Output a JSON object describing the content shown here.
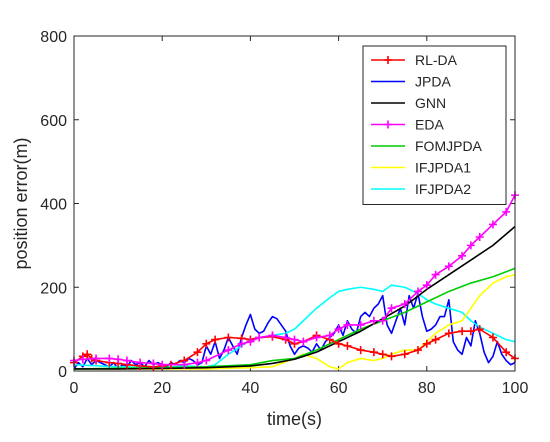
{
  "chart_data": {
    "type": "line",
    "title": "",
    "xlabel": "time(s)",
    "ylabel": "position error(m)",
    "xlim": [
      0,
      100
    ],
    "ylim": [
      0,
      800
    ],
    "xticks": [
      0,
      20,
      40,
      60,
      80,
      100
    ],
    "yticks": [
      0,
      200,
      400,
      600,
      800
    ],
    "grid": false,
    "legend_position": "top-right",
    "series": [
      {
        "name": "RL-DA",
        "color": "#ff0000",
        "marker": "plus",
        "x": [
          0,
          2,
          3,
          4,
          5,
          8,
          10,
          12,
          15,
          18,
          20,
          22,
          25,
          28,
          30,
          32,
          35,
          38,
          40,
          42,
          45,
          48,
          50,
          52,
          55,
          58,
          60,
          62,
          65,
          68,
          70,
          72,
          75,
          78,
          80,
          82,
          85,
          88,
          90,
          92,
          95,
          98,
          100
        ],
        "y": [
          20,
          35,
          40,
          30,
          25,
          20,
          18,
          15,
          12,
          10,
          12,
          15,
          25,
          45,
          65,
          75,
          80,
          78,
          75,
          80,
          82,
          75,
          65,
          70,
          85,
          75,
          65,
          60,
          50,
          45,
          40,
          35,
          40,
          50,
          65,
          75,
          90,
          95,
          95,
          100,
          80,
          45,
          30
        ]
      },
      {
        "name": "JPDA",
        "color": "#0000ff",
        "x": [
          0,
          1,
          2,
          3,
          4,
          5,
          6,
          7,
          8,
          9,
          10,
          11,
          12,
          13,
          14,
          15,
          16,
          17,
          18,
          19,
          20,
          21,
          22,
          23,
          24,
          25,
          26,
          27,
          28,
          29,
          30,
          31,
          32,
          33,
          34,
          35,
          36,
          37,
          38,
          39,
          40,
          41,
          42,
          43,
          44,
          45,
          46,
          47,
          48,
          49,
          50,
          51,
          52,
          53,
          54,
          55,
          56,
          57,
          58,
          59,
          60,
          61,
          62,
          63,
          64,
          65,
          66,
          67,
          68,
          69,
          70,
          71,
          72,
          73,
          74,
          75,
          76,
          77,
          78,
          79,
          80,
          81,
          82,
          83,
          84,
          85,
          86,
          87,
          88,
          89,
          90,
          91,
          92,
          93,
          94,
          95,
          96,
          97,
          98,
          99,
          100
        ],
        "y": [
          5,
          20,
          10,
          30,
          15,
          25,
          20,
          15,
          10,
          20,
          5,
          15,
          10,
          25,
          15,
          20,
          10,
          25,
          15,
          20,
          15,
          10,
          20,
          15,
          25,
          20,
          30,
          25,
          15,
          20,
          60,
          40,
          70,
          30,
          50,
          80,
          60,
          40,
          80,
          110,
          135,
          100,
          90,
          95,
          115,
          130,
          125,
          110,
          95,
          60,
          40,
          55,
          60,
          55,
          45,
          65,
          50,
          70,
          80,
          90,
          110,
          85,
          120,
          100,
          90,
          130,
          140,
          130,
          150,
          160,
          180,
          110,
          90,
          120,
          150,
          110,
          180,
          150,
          185,
          130,
          95,
          100,
          110,
          130,
          130,
          170,
          70,
          50,
          40,
          80,
          60,
          120,
          90,
          45,
          20,
          35,
          70,
          40,
          25,
          15,
          20
        ]
      },
      {
        "name": "GNN",
        "color": "#000000",
        "x": [
          0,
          10,
          20,
          30,
          40,
          45,
          50,
          55,
          60,
          65,
          70,
          75,
          80,
          85,
          90,
          95,
          100
        ],
        "y": [
          5,
          5,
          6,
          8,
          12,
          18,
          28,
          45,
          70,
          95,
          125,
          155,
          195,
          230,
          265,
          300,
          345
        ]
      },
      {
        "name": "EDA",
        "color": "#ff00ff",
        "marker": "plus",
        "x": [
          0,
          2,
          5,
          8,
          10,
          12,
          15,
          18,
          20,
          25,
          28,
          30,
          35,
          38,
          40,
          42,
          45,
          48,
          50,
          52,
          55,
          58,
          60,
          62,
          65,
          68,
          70,
          72,
          75,
          78,
          80,
          82,
          85,
          88,
          90,
          92,
          95,
          98,
          100
        ],
        "y": [
          25,
          28,
          30,
          30,
          28,
          25,
          20,
          18,
          15,
          15,
          20,
          25,
          50,
          65,
          70,
          80,
          85,
          80,
          75,
          70,
          80,
          85,
          100,
          110,
          110,
          120,
          120,
          150,
          160,
          190,
          205,
          230,
          250,
          275,
          300,
          320,
          350,
          380,
          420
        ]
      },
      {
        "name": "FOMJPDA",
        "color": "#00cc00",
        "x": [
          0,
          20,
          30,
          40,
          45,
          50,
          55,
          60,
          65,
          70,
          75,
          80,
          85,
          90,
          95,
          100
        ],
        "y": [
          5,
          8,
          10,
          15,
          25,
          30,
          50,
          75,
          100,
          120,
          140,
          165,
          190,
          210,
          225,
          245
        ]
      },
      {
        "name": "IFJPDA1",
        "color": "#ffff00",
        "x": [
          0,
          20,
          30,
          40,
          45,
          50,
          52,
          55,
          58,
          60,
          62,
          65,
          68,
          70,
          72,
          75,
          78,
          80,
          82,
          85,
          88,
          90,
          92,
          95,
          98,
          100
        ],
        "y": [
          5,
          5,
          5,
          8,
          10,
          30,
          40,
          30,
          10,
          5,
          20,
          30,
          25,
          30,
          40,
          50,
          50,
          70,
          90,
          110,
          120,
          150,
          180,
          210,
          225,
          230
        ]
      },
      {
        "name": "IFJPDA2",
        "color": "#00ffff",
        "x": [
          0,
          10,
          20,
          25,
          30,
          32,
          35,
          38,
          40,
          42,
          45,
          48,
          50,
          52,
          55,
          58,
          60,
          62,
          65,
          68,
          70,
          72,
          75,
          78,
          80,
          82,
          85,
          88,
          90,
          92,
          95,
          98,
          100
        ],
        "y": [
          15,
          10,
          8,
          12,
          10,
          15,
          40,
          60,
          75,
          80,
          85,
          90,
          100,
          120,
          150,
          175,
          190,
          195,
          200,
          195,
          190,
          205,
          200,
          185,
          170,
          160,
          150,
          140,
          120,
          105,
          90,
          75,
          70
        ]
      }
    ]
  }
}
